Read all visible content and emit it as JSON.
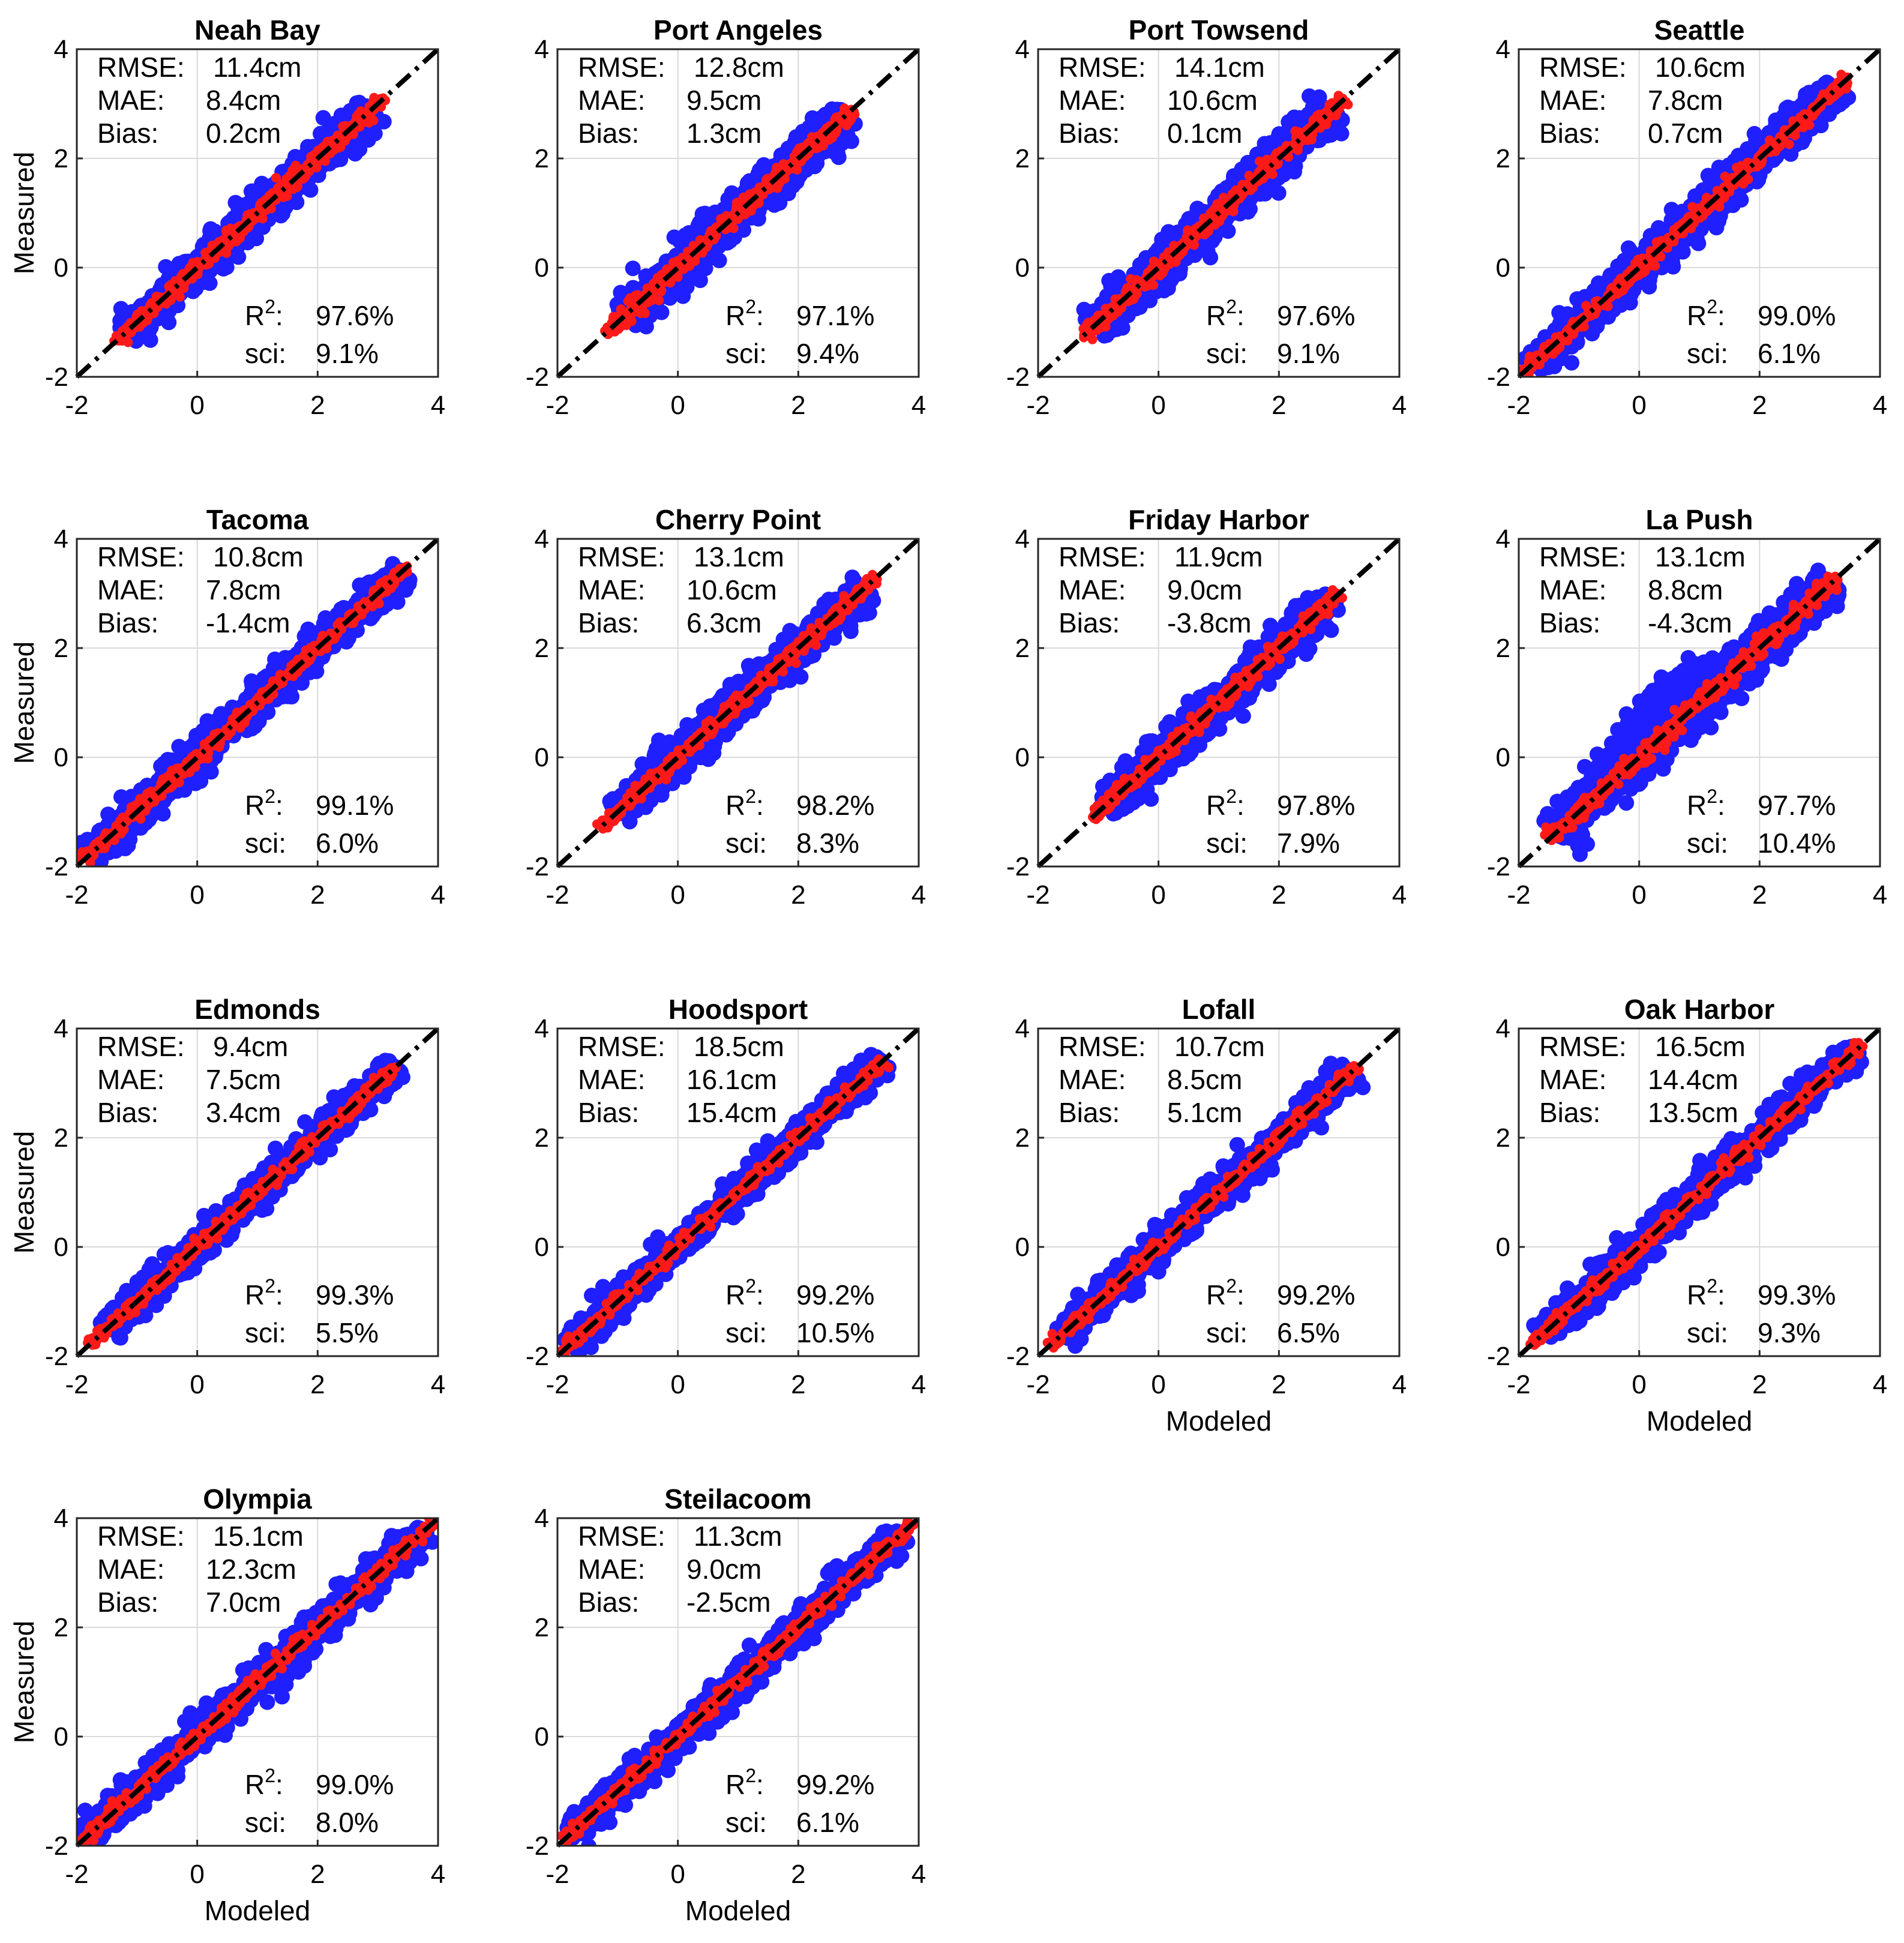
{
  "figure": {
    "xlabel": "Modeled",
    "ylabel": "Measured",
    "ticks": [
      "-2",
      "0",
      "2",
      "4"
    ],
    "tick_values": [
      -2,
      0,
      2,
      4
    ],
    "stat_labels": {
      "rmse": "RMSE:",
      "mae": "MAE:",
      "bias": "Bias:",
      "r2": "R",
      "r2_sup": "2",
      "r2_colon": ":",
      "sci": "sci:"
    },
    "colors": {
      "measured_points": "#1f1fff",
      "model_points": "#ff1a1a",
      "identity_line": "#000000",
      "grid": "#d9d9d9"
    }
  },
  "chart_data": [
    {
      "type": "scatter",
      "title": "Neah Bay",
      "rmse": "11.4cm",
      "mae": "8.4cm",
      "bias": "0.2cm",
      "r2": "97.6%",
      "sci": "9.1%",
      "xlim": [
        -2,
        4
      ],
      "ylim": [
        -2,
        4
      ],
      "grid": true,
      "xlabel": "",
      "ylabel": "Measured",
      "blue_range": [
        -1.2,
        2.9
      ],
      "red_range": [
        -1.4,
        3.1
      ],
      "spread": 0.42
    },
    {
      "type": "scatter",
      "title": "Port Angeles",
      "rmse": "12.8cm",
      "mae": "9.5cm",
      "bias": "1.3cm",
      "r2": "97.1%",
      "sci": "9.4%",
      "xlim": [
        -2,
        4
      ],
      "ylim": [
        -2,
        4
      ],
      "grid": true,
      "xlabel": "",
      "ylabel": "",
      "blue_range": [
        -0.9,
        2.8
      ],
      "red_range": [
        -1.2,
        2.9
      ],
      "spread": 0.45
    },
    {
      "type": "scatter",
      "title": "Port Towsend",
      "rmse": "14.1cm",
      "mae": "10.6cm",
      "bias": "0.1cm",
      "r2": "97.6%",
      "sci": "9.1%",
      "xlim": [
        -2,
        4
      ],
      "ylim": [
        -2,
        4
      ],
      "grid": true,
      "xlabel": "",
      "ylabel": "",
      "blue_range": [
        -1.1,
        2.9
      ],
      "red_range": [
        -1.3,
        3.1
      ],
      "spread": 0.45
    },
    {
      "type": "scatter",
      "title": "Seattle",
      "rmse": "10.6cm",
      "mae": "7.8cm",
      "bias": "0.7cm",
      "r2": "99.0%",
      "sci": "6.1%",
      "xlim": [
        -2,
        4
      ],
      "ylim": [
        -2,
        4
      ],
      "grid": true,
      "xlabel": "",
      "ylabel": "",
      "blue_range": [
        -1.8,
        3.3
      ],
      "red_range": [
        -1.9,
        3.5
      ],
      "spread": 0.42
    },
    {
      "type": "scatter",
      "title": "Tacoma",
      "rmse": "10.8cm",
      "mae": "7.8cm",
      "bias": "-1.4cm",
      "r2": "99.1%",
      "sci": "6.0%",
      "xlim": [
        -2,
        4
      ],
      "ylim": [
        -2,
        4
      ],
      "grid": true,
      "xlabel": "",
      "ylabel": "Measured",
      "blue_range": [
        -1.8,
        3.4
      ],
      "red_range": [
        -1.9,
        3.5
      ],
      "spread": 0.4
    },
    {
      "type": "scatter",
      "title": "Cherry Point",
      "rmse": "13.1cm",
      "mae": "10.6cm",
      "bias": "6.3cm",
      "r2": "98.2%",
      "sci": "8.3%",
      "xlim": [
        -2,
        4
      ],
      "ylim": [
        -2,
        4
      ],
      "grid": true,
      "xlabel": "",
      "ylabel": "",
      "blue_range": [
        -1.0,
        3.1
      ],
      "red_range": [
        -1.3,
        3.3
      ],
      "spread": 0.4
    },
    {
      "type": "scatter",
      "title": "Friday Harbor",
      "rmse": "11.9cm",
      "mae": "9.0cm",
      "bias": "-3.8cm",
      "r2": "97.8%",
      "sci": "7.9%",
      "xlim": [
        -2,
        4
      ],
      "ylim": [
        -2,
        4
      ],
      "grid": true,
      "xlabel": "",
      "ylabel": "",
      "blue_range": [
        -0.9,
        2.9
      ],
      "red_range": [
        -1.1,
        3.0
      ],
      "spread": 0.42
    },
    {
      "type": "scatter",
      "title": "La Push",
      "rmse": "13.1cm",
      "mae": "8.8cm",
      "bias": "-4.3cm",
      "r2": "97.7%",
      "sci": "10.4%",
      "xlim": [
        -2,
        4
      ],
      "ylim": [
        -2,
        4
      ],
      "grid": true,
      "xlabel": "",
      "ylabel": "",
      "blue_range": [
        -1.4,
        3.2
      ],
      "red_range": [
        -1.5,
        3.3
      ],
      "spread": 0.5
    },
    {
      "type": "scatter",
      "title": "Edmonds",
      "rmse": "9.4cm",
      "mae": "7.5cm",
      "bias": "3.4cm",
      "r2": "99.3%",
      "sci": "5.5%",
      "xlim": [
        -2,
        4
      ],
      "ylim": [
        -2,
        4
      ],
      "grid": true,
      "xlabel": "",
      "ylabel": "Measured",
      "blue_range": [
        -1.5,
        3.3
      ],
      "red_range": [
        -1.8,
        3.3
      ],
      "spread": 0.35
    },
    {
      "type": "scatter",
      "title": "Hoodsport",
      "rmse": "18.5cm",
      "mae": "16.1cm",
      "bias": "15.4cm",
      "r2": "99.2%",
      "sci": "10.5%",
      "xlim": [
        -2,
        4
      ],
      "ylim": [
        -2,
        4
      ],
      "grid": true,
      "xlabel": "",
      "ylabel": "",
      "blue_range": [
        -1.8,
        3.4
      ],
      "red_range": [
        -2.0,
        3.4
      ],
      "spread": 0.35
    },
    {
      "type": "scatter",
      "title": "Lofall",
      "rmse": "10.7cm",
      "mae": "8.5cm",
      "bias": "5.1cm",
      "r2": "99.2%",
      "sci": "6.5%",
      "xlim": [
        -2,
        4
      ],
      "ylim": [
        -2,
        4
      ],
      "grid": true,
      "xlabel": "Modeled",
      "ylabel": "",
      "blue_range": [
        -1.6,
        3.2
      ],
      "red_range": [
        -1.8,
        3.3
      ],
      "spread": 0.35
    },
    {
      "type": "scatter",
      "title": "Oak Harbor",
      "rmse": "16.5cm",
      "mae": "14.4cm",
      "bias": "13.5cm",
      "r2": "99.3%",
      "sci": "9.3%",
      "xlim": [
        -2,
        4
      ],
      "ylim": [
        -2,
        4
      ],
      "grid": true,
      "xlabel": "Modeled",
      "ylabel": "",
      "blue_range": [
        -1.6,
        3.6
      ],
      "red_range": [
        -1.8,
        3.7
      ],
      "spread": 0.38
    },
    {
      "type": "scatter",
      "title": "Olympia",
      "rmse": "15.1cm",
      "mae": "12.3cm",
      "bias": "7.0cm",
      "r2": "99.0%",
      "sci": "8.0%",
      "xlim": [
        -2,
        4
      ],
      "ylim": [
        -2,
        4
      ],
      "grid": true,
      "xlabel": "Modeled",
      "ylabel": "Measured",
      "blue_range": [
        -1.9,
        3.8
      ],
      "red_range": [
        -2.0,
        4.0
      ],
      "spread": 0.4
    },
    {
      "type": "scatter",
      "title": "Steilacoom",
      "rmse": "11.3cm",
      "mae": "9.0cm",
      "bias": "-2.5cm",
      "r2": "99.2%",
      "sci": "6.1%",
      "xlim": [
        -2,
        4
      ],
      "ylim": [
        -2,
        4
      ],
      "grid": true,
      "xlabel": "Modeled",
      "ylabel": "",
      "blue_range": [
        -1.8,
        3.7
      ],
      "red_range": [
        -1.9,
        3.9
      ],
      "spread": 0.36
    }
  ]
}
